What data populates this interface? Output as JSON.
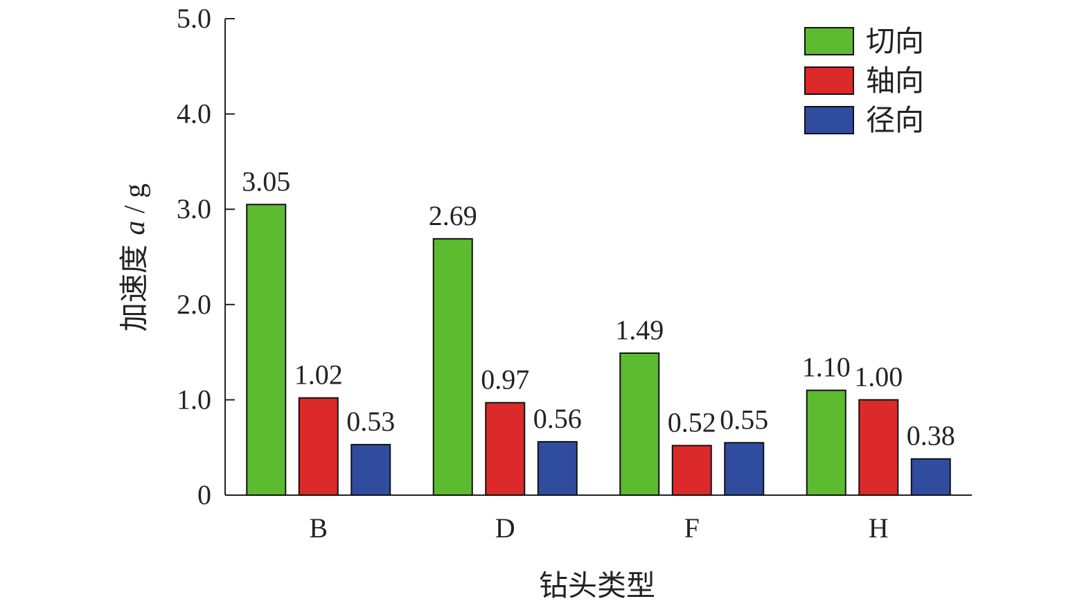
{
  "chart_data": {
    "type": "bar",
    "categories": [
      "B",
      "D",
      "F",
      "H"
    ],
    "series": [
      {
        "name": "切向",
        "color": "#5dbb30",
        "values": [
          3.05,
          2.69,
          1.49,
          1.1
        ],
        "labels": [
          "3.05",
          "2.69",
          "1.49",
          "1.10"
        ]
      },
      {
        "name": "轴向",
        "color": "#dc2a2a",
        "values": [
          1.02,
          0.97,
          0.52,
          1.0
        ],
        "labels": [
          "1.02",
          "0.97",
          "0.52",
          "1.00"
        ]
      },
      {
        "name": "径向",
        "color": "#2f4c9e",
        "values": [
          0.53,
          0.56,
          0.55,
          0.38
        ],
        "labels": [
          "0.53",
          "0.56",
          "0.55",
          "0.38"
        ]
      }
    ],
    "xlabel": "钻头类型",
    "ylabel": "加速度 a / g",
    "ylabel_parts": {
      "text": "加速度 ",
      "var": "a",
      "unit": " / g"
    },
    "ylim": [
      0,
      5
    ],
    "yticks": [
      {
        "value": 0,
        "label": "0"
      },
      {
        "value": 1,
        "label": "1.0"
      },
      {
        "value": 2,
        "label": "2.0"
      },
      {
        "value": 3,
        "label": "3.0"
      },
      {
        "value": 4,
        "label": "4.0"
      },
      {
        "value": 5,
        "label": "5.0"
      }
    ],
    "legend_position": "top-right",
    "grid": false
  }
}
